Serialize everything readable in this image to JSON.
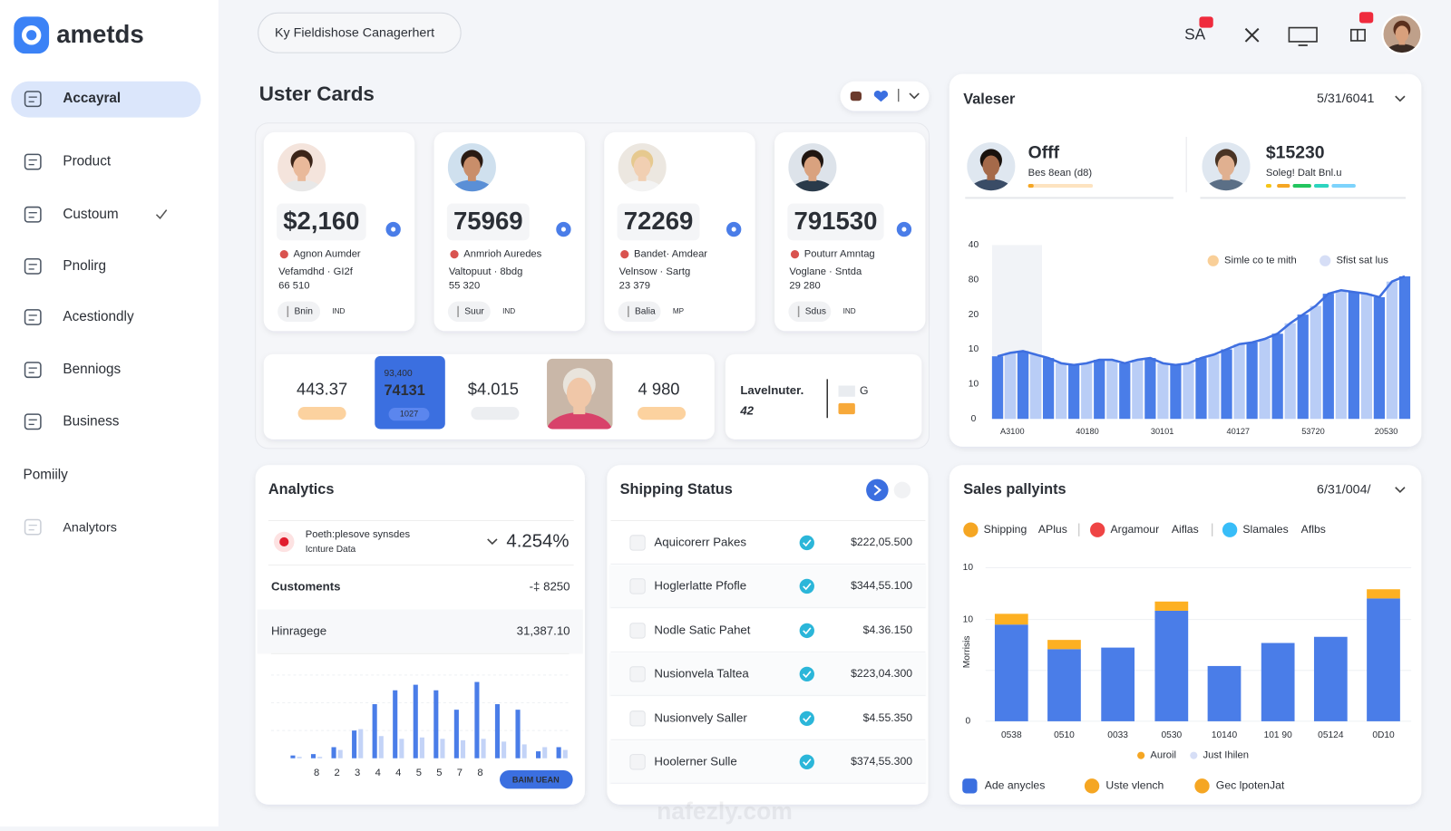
{
  "sidebar": {
    "brand": "ametds",
    "nav": [
      "Accayral",
      "Product",
      "Custoum",
      "Pnolirg",
      "Acestiondly",
      "Benniogs",
      "Business"
    ],
    "section": "Pomiily",
    "disabled_item": "Analytors"
  },
  "topbar": {
    "search": "Ky Fieldishose Canagerhert",
    "shortcut": "SA"
  },
  "user_cards": {
    "title": "Uster Cards",
    "cards": [
      {
        "amount": "$2,160",
        "name": "Agnon  Aumder",
        "detail": "Vefamdhd · GI2f",
        "code": "66 510",
        "tag": "Bnin",
        "suffix": "IND"
      },
      {
        "amount": "75969",
        "name": "Anmrioh Auredes",
        "detail": "Valtopuut · 8bdg",
        "code": "55 320",
        "tag": "Suur",
        "suffix": "IND"
      },
      {
        "amount": "72269",
        "name": "Bandet· Amdear",
        "detail": "Velnsow · Sartg",
        "code": "23 379",
        "tag": "Balia",
        "suffix": "MP"
      },
      {
        "amount": "791530",
        "name": "Pouturr Amntag",
        "detail": "Voglane · Sntda",
        "code": "29 280",
        "tag": "Sdus",
        "suffix": "IND"
      }
    ],
    "stats": [
      {
        "value": "443.37"
      },
      {
        "label": "93,400",
        "value": "74131",
        "sub": "1027"
      },
      {
        "value": "$4.015"
      },
      {
        "value": "4 980"
      }
    ],
    "level": {
      "label": "Lavelnuter.",
      "value": "42",
      "flag": "G"
    }
  },
  "valeser": {
    "title": "Valeser",
    "date": "5/31/6041",
    "profiles": [
      {
        "name": "Offf",
        "sub": "Bes 8ean (d8)"
      },
      {
        "name": "$15230",
        "sub": "Soleg! Dalt Bnl.u"
      }
    ],
    "chart": {
      "type": "bar",
      "legend": [
        {
          "name": "Simle co te mith",
          "color": "#f9cf98"
        },
        {
          "name": "Sfist sat lus",
          "color": "#d6def6"
        }
      ],
      "y_labels": [
        "40",
        "80",
        "20",
        "10",
        "10",
        "0"
      ],
      "x_labels": [
        "A3100",
        "40180",
        "30101",
        "40127",
        "53720",
        "20530"
      ],
      "ylim": [
        0,
        100
      ],
      "colors": [
        "#4a7de8",
        "#b9cdf6"
      ],
      "line_color": "#3f6fe0",
      "values": [
        36,
        38,
        39,
        37,
        35,
        32,
        31,
        32,
        34,
        34,
        32,
        34,
        35,
        32,
        31,
        32,
        35,
        37,
        40,
        43,
        44,
        46,
        49,
        55,
        60,
        65,
        72,
        74,
        73,
        72,
        70,
        79,
        82
      ]
    }
  },
  "analytics": {
    "title": "Analytics",
    "row": {
      "title": "Poeth:plesove synsdes",
      "sub": "Icnture Data",
      "value": "4.254%"
    },
    "metrics": [
      {
        "label": "Customents",
        "value": "-‡ 8250"
      },
      {
        "label": "Hinragege",
        "value": "31,387.10"
      }
    ],
    "chart": {
      "type": "bar",
      "categories": [
        null,
        "8",
        "2",
        "3",
        "4",
        "4",
        "5",
        "5",
        "7",
        "8",
        null,
        null,
        null,
        null
      ],
      "ylim": [
        0,
        60
      ],
      "series": [
        {
          "color": "#4a7de8",
          "values": [
            2,
            3,
            8,
            20,
            39,
            49,
            53,
            49,
            35,
            55,
            39,
            35,
            5,
            8
          ]
        },
        {
          "color": "#c3d3f7",
          "values": [
            1,
            1,
            6,
            21,
            16,
            14,
            15,
            14,
            13,
            14,
            12,
            10,
            8,
            6
          ]
        }
      ],
      "button": "BAIM UEAN"
    }
  },
  "shipping": {
    "title": "Shipping Status",
    "rows": [
      {
        "name": "Aquicorerr Pakes",
        "amount": "$222,05.500"
      },
      {
        "name": "Hoglerlatte Pfofle",
        "amount": "$344,55.100"
      },
      {
        "name": "Nodle Satic Pahet",
        "amount": "$4.36.150"
      },
      {
        "name": "Nusionvela Taltea",
        "amount": "$223,04.300"
      },
      {
        "name": "Nusionvely Saller",
        "amount": "$4.55.350"
      },
      {
        "name": "Hoolerner Sulle",
        "amount": "$374,55.300"
      }
    ]
  },
  "sales": {
    "title": "Sales pallyints",
    "date": "6/31/004/",
    "legend": [
      {
        "name": "Shipping",
        "tag": "APlus",
        "color": "#f5a623"
      },
      {
        "name": "Argamour",
        "tag": "Aiflas",
        "color": "#ef4444"
      },
      {
        "name": "Slamales",
        "tag": "Aflbs",
        "color": "#38bdf8"
      }
    ],
    "chart": {
      "type": "bar",
      "stacked": true,
      "y_label": "Morrisis",
      "y_labels": [
        "10",
        "10",
        "0"
      ],
      "categories": [
        "0538",
        "0510",
        "0033",
        "0530",
        "10140",
        "101 90",
        "05124",
        "0D10"
      ],
      "ylim": [
        0,
        100
      ],
      "series": [
        {
          "color": "#4a7de8",
          "values": [
            63,
            47,
            48,
            72,
            36,
            51,
            55,
            80
          ]
        },
        {
          "color": "#fdb022",
          "values": [
            7,
            6,
            null,
            6,
            null,
            null,
            null,
            6
          ]
        }
      ],
      "bottom_legend": [
        {
          "name": "Auroil",
          "color": "#f5a623"
        },
        {
          "name": "Just Ihilen",
          "color": "#d6def6"
        }
      ]
    },
    "footer_legend": [
      {
        "name": "Ade anycles",
        "color": "#3b6fe0"
      },
      {
        "name": "Uste vlench",
        "color": "#f5a623"
      },
      {
        "name": "Gec lpotenJat",
        "color": "#f5a623"
      }
    ]
  },
  "watermark": "nafezly.com"
}
